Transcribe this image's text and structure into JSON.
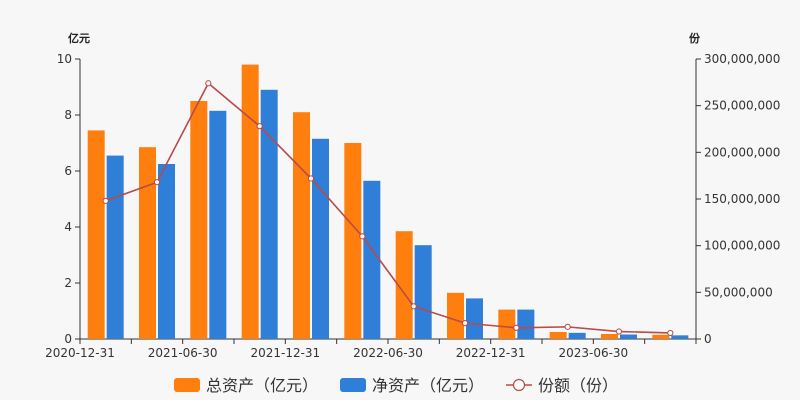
{
  "chart_data": {
    "type": "bar",
    "x": [
      "2020-12-31",
      "2021-03-31",
      "2021-06-30",
      "2021-09-30",
      "2021-12-31",
      "2022-03-31",
      "2022-06-30",
      "2022-09-30",
      "2022-12-31",
      "2023-03-31",
      "2023-06-30",
      "2023-09-30"
    ],
    "x_tick_labels": [
      "2020-12-31",
      "2021-06-30",
      "2021-12-31",
      "2022-06-30",
      "2022-12-31",
      "2023-06-30"
    ],
    "left_axis": {
      "unit": "亿元",
      "ylim": [
        0,
        10
      ],
      "ticks": [
        "0",
        "2",
        "4",
        "6",
        "8",
        "10"
      ]
    },
    "right_axis": {
      "unit": "份",
      "ylim": [
        0,
        300000000
      ],
      "ticks": [
        "0",
        "50,000,000",
        "100,000,000",
        "150,000,000",
        "200,000,000",
        "250,000,000",
        "300,000,000"
      ]
    },
    "series": [
      {
        "name": "总资产（亿元）",
        "type": "bar",
        "axis": "left",
        "color": "#ff7f0e",
        "values": [
          7.45,
          6.85,
          8.5,
          9.8,
          8.1,
          7.0,
          3.85,
          1.65,
          1.05,
          0.25,
          0.18,
          0.15
        ]
      },
      {
        "name": "净资产（亿元）",
        "type": "bar",
        "axis": "left",
        "color": "#2f7ed8",
        "values": [
          6.55,
          6.25,
          8.15,
          8.9,
          7.15,
          5.65,
          3.35,
          1.45,
          1.05,
          0.22,
          0.16,
          0.13
        ]
      },
      {
        "name": "份额（份）",
        "type": "line",
        "axis": "right",
        "color": "#b94a48",
        "values": [
          148000000,
          168000000,
          274000000,
          228000000,
          172000000,
          110000000,
          35000000,
          17000000,
          12000000,
          13000000,
          8000000,
          6500000
        ]
      }
    ],
    "grid": false,
    "legend_position": "bottom"
  }
}
